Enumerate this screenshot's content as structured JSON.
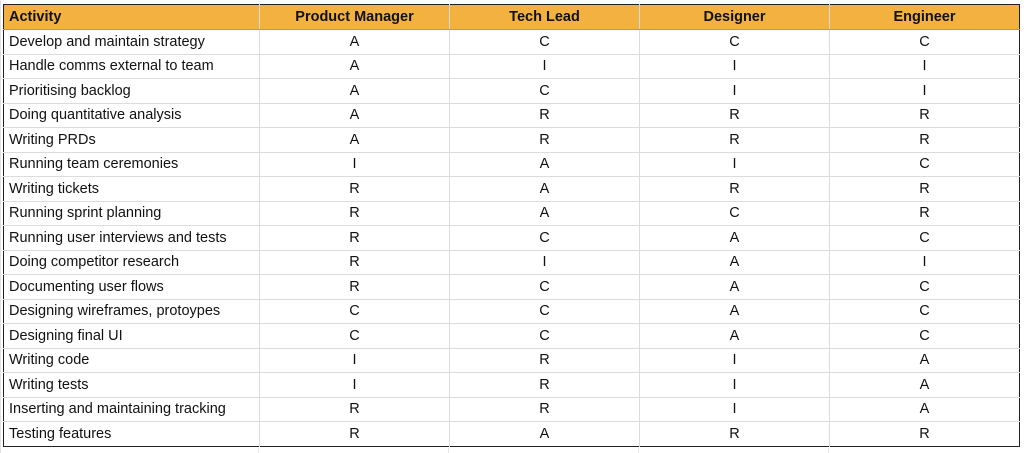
{
  "table": {
    "headers": [
      "Activity",
      "Product Manager",
      "Tech Lead",
      "Designer",
      "Engineer"
    ],
    "rows": [
      [
        "Develop and maintain strategy",
        "A",
        "C",
        "C",
        "C"
      ],
      [
        "Handle comms external to team",
        "A",
        "I",
        "I",
        "I"
      ],
      [
        "Prioritising backlog",
        "A",
        "C",
        "I",
        "I"
      ],
      [
        "Doing quantitative analysis",
        "A",
        "R",
        "R",
        "R"
      ],
      [
        "Writing PRDs",
        "A",
        "R",
        "R",
        "R"
      ],
      [
        "Running team ceremonies",
        "I",
        "A",
        "I",
        "C"
      ],
      [
        "Writing tickets",
        "R",
        "A",
        "R",
        "R"
      ],
      [
        "Running sprint planning",
        "R",
        "A",
        "C",
        "R"
      ],
      [
        "Running user interviews and tests",
        "R",
        "C",
        "A",
        "C"
      ],
      [
        "Doing competitor research",
        "R",
        "I",
        "A",
        "I"
      ],
      [
        "Documenting user flows",
        "R",
        "C",
        "A",
        "C"
      ],
      [
        "Designing wireframes, protoypes",
        "C",
        "C",
        "A",
        "C"
      ],
      [
        "Designing final UI",
        "C",
        "C",
        "A",
        "C"
      ],
      [
        "Writing code",
        "I",
        "R",
        "I",
        "A"
      ],
      [
        "Writing tests",
        "I",
        "R",
        "I",
        "A"
      ],
      [
        "Inserting and maintaining tracking",
        "R",
        "R",
        "I",
        "A"
      ],
      [
        "Testing features",
        "R",
        "A",
        "R",
        "R"
      ]
    ]
  },
  "colors": {
    "header_fill": "#f3b13f",
    "border": "#222222"
  }
}
